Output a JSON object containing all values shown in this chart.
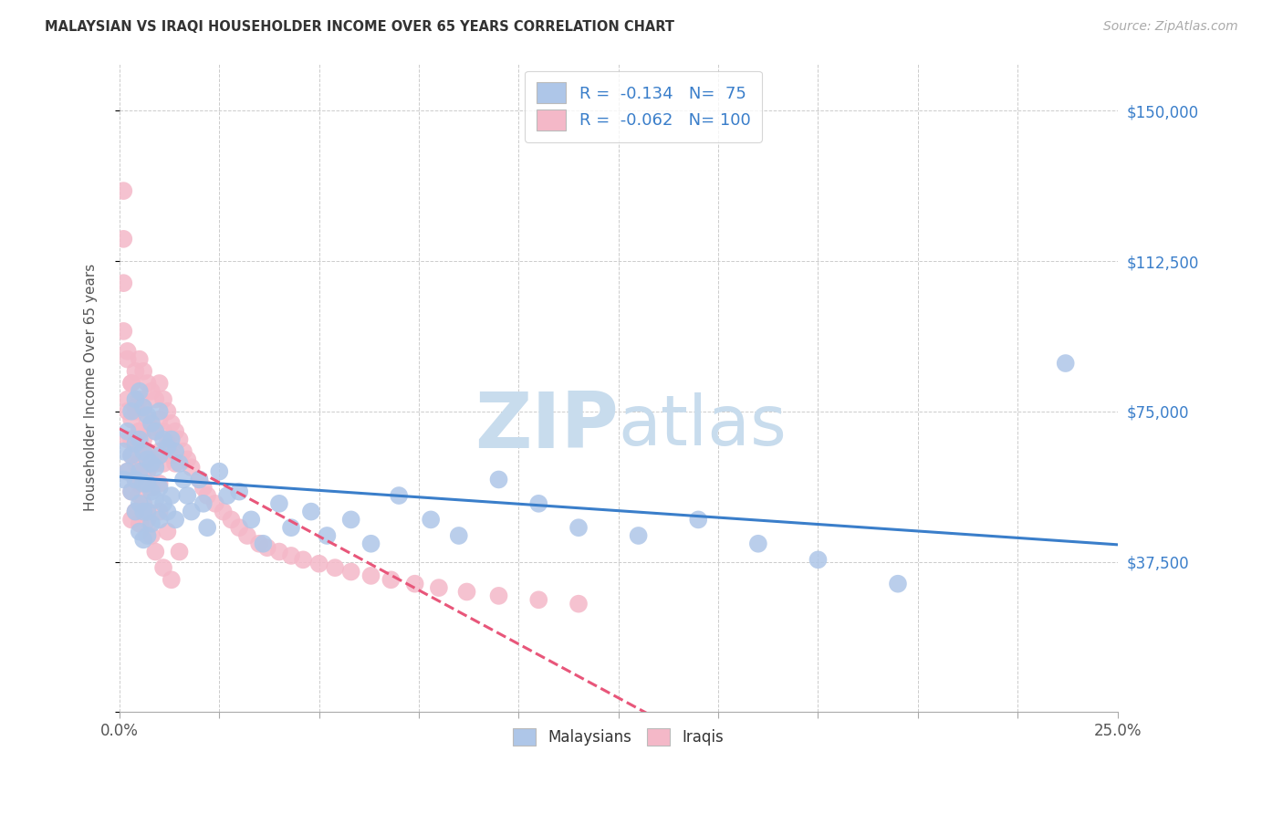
{
  "title": "MALAYSIAN VS IRAQI HOUSEHOLDER INCOME OVER 65 YEARS CORRELATION CHART",
  "source": "Source: ZipAtlas.com",
  "ylabel": "Householder Income Over 65 years",
  "xlim": [
    0.0,
    0.25
  ],
  "ylim": [
    0,
    162000
  ],
  "yticks": [
    0,
    37500,
    75000,
    112500,
    150000
  ],
  "ytick_labels": [
    "",
    "$37,500",
    "$75,000",
    "$112,500",
    "$150,000"
  ],
  "xtick_labels": [
    "0.0%",
    "",
    "",
    "",
    "",
    "",
    "",
    "",
    "",
    "",
    "25.0%"
  ],
  "xticks": [
    0.0,
    0.025,
    0.05,
    0.075,
    0.1,
    0.125,
    0.15,
    0.175,
    0.2,
    0.225,
    0.25
  ],
  "legend_labels": [
    "Malaysians",
    "Iraqis"
  ],
  "legend_r": [
    -0.134,
    -0.062
  ],
  "legend_n": [
    75,
    100
  ],
  "malaysian_color": "#aec6e8",
  "iraqi_color": "#f4b8c8",
  "malaysian_line_color": "#3a7eca",
  "iraqi_line_color": "#e8567a",
  "watermark_zip": "ZIP",
  "watermark_atlas": "atlas",
  "watermark_color": "#c8dced",
  "title_color": "#333333",
  "right_label_color": "#3a7eca",
  "background_color": "#ffffff",
  "malaysian_x": [
    0.001,
    0.001,
    0.002,
    0.002,
    0.003,
    0.003,
    0.003,
    0.004,
    0.004,
    0.004,
    0.004,
    0.005,
    0.005,
    0.005,
    0.005,
    0.005,
    0.006,
    0.006,
    0.006,
    0.006,
    0.006,
    0.007,
    0.007,
    0.007,
    0.007,
    0.007,
    0.008,
    0.008,
    0.008,
    0.008,
    0.009,
    0.009,
    0.009,
    0.01,
    0.01,
    0.01,
    0.01,
    0.011,
    0.011,
    0.012,
    0.012,
    0.013,
    0.013,
    0.014,
    0.014,
    0.015,
    0.016,
    0.017,
    0.018,
    0.02,
    0.021,
    0.022,
    0.025,
    0.027,
    0.03,
    0.033,
    0.036,
    0.04,
    0.043,
    0.048,
    0.052,
    0.058,
    0.063,
    0.07,
    0.078,
    0.085,
    0.095,
    0.105,
    0.115,
    0.13,
    0.145,
    0.16,
    0.175,
    0.195,
    0.237
  ],
  "malaysian_y": [
    65000,
    58000,
    70000,
    60000,
    75000,
    64000,
    55000,
    78000,
    67000,
    58000,
    50000,
    80000,
    68000,
    60000,
    52000,
    45000,
    76000,
    65000,
    57000,
    50000,
    43000,
    74000,
    63000,
    57000,
    50000,
    44000,
    72000,
    62000,
    55000,
    47000,
    70000,
    61000,
    53000,
    75000,
    64000,
    56000,
    48000,
    68000,
    52000,
    66000,
    50000,
    68000,
    54000,
    65000,
    48000,
    62000,
    58000,
    54000,
    50000,
    58000,
    52000,
    46000,
    60000,
    54000,
    55000,
    48000,
    42000,
    52000,
    46000,
    50000,
    44000,
    48000,
    42000,
    54000,
    48000,
    44000,
    58000,
    52000,
    46000,
    44000,
    48000,
    42000,
    38000,
    32000,
    87000
  ],
  "iraqi_x": [
    0.001,
    0.001,
    0.001,
    0.001,
    0.002,
    0.002,
    0.002,
    0.002,
    0.003,
    0.003,
    0.003,
    0.003,
    0.003,
    0.004,
    0.004,
    0.004,
    0.004,
    0.004,
    0.005,
    0.005,
    0.005,
    0.005,
    0.005,
    0.005,
    0.006,
    0.006,
    0.006,
    0.006,
    0.007,
    0.007,
    0.007,
    0.007,
    0.007,
    0.008,
    0.008,
    0.008,
    0.009,
    0.009,
    0.009,
    0.01,
    0.01,
    0.01,
    0.01,
    0.011,
    0.011,
    0.011,
    0.012,
    0.012,
    0.013,
    0.013,
    0.014,
    0.014,
    0.015,
    0.016,
    0.017,
    0.018,
    0.02,
    0.021,
    0.022,
    0.024,
    0.026,
    0.028,
    0.03,
    0.032,
    0.035,
    0.037,
    0.04,
    0.043,
    0.046,
    0.05,
    0.054,
    0.058,
    0.063,
    0.068,
    0.074,
    0.08,
    0.087,
    0.095,
    0.105,
    0.115,
    0.002,
    0.003,
    0.004,
    0.005,
    0.006,
    0.007,
    0.008,
    0.01,
    0.012,
    0.015,
    0.002,
    0.003,
    0.004,
    0.005,
    0.006,
    0.007,
    0.008,
    0.009,
    0.011,
    0.013
  ],
  "iraqi_y": [
    130000,
    118000,
    107000,
    95000,
    88000,
    78000,
    68000,
    60000,
    82000,
    73000,
    64000,
    55000,
    48000,
    85000,
    76000,
    67000,
    58000,
    50000,
    88000,
    78000,
    70000,
    62000,
    54000,
    47000,
    85000,
    76000,
    68000,
    60000,
    82000,
    73000,
    65000,
    57000,
    50000,
    80000,
    71000,
    63000,
    78000,
    70000,
    62000,
    82000,
    73000,
    65000,
    57000,
    78000,
    70000,
    62000,
    75000,
    67000,
    72000,
    64000,
    70000,
    62000,
    68000,
    65000,
    63000,
    61000,
    58000,
    56000,
    54000,
    52000,
    50000,
    48000,
    46000,
    44000,
    42000,
    41000,
    40000,
    39000,
    38000,
    37000,
    36000,
    35000,
    34000,
    33000,
    32000,
    31000,
    30000,
    29000,
    28000,
    27000,
    90000,
    82000,
    75000,
    70000,
    65000,
    60000,
    56000,
    50000,
    45000,
    40000,
    75000,
    68000,
    62000,
    57000,
    52000,
    48000,
    44000,
    40000,
    36000,
    33000
  ]
}
